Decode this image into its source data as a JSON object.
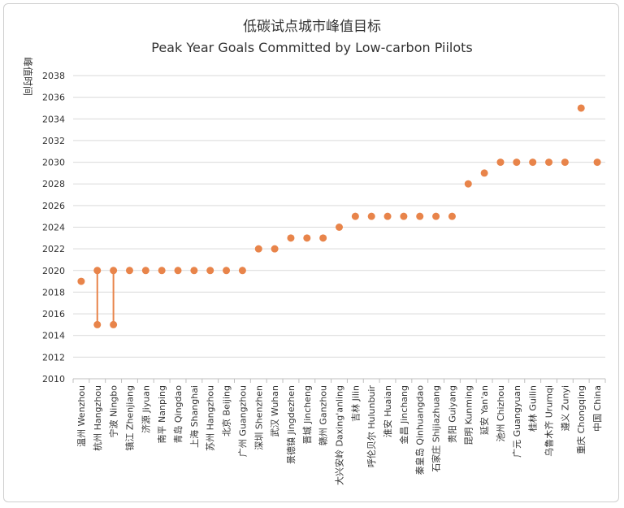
{
  "chart_data": {
    "type": "scatter",
    "title": "低碳试点城市峰值目标",
    "subtitle": "Peak Year Goals Committed by Low-carbon Piilots",
    "ylabel": "峰值时间",
    "xlabel": "",
    "ylim": [
      2010,
      2038
    ],
    "yticks": [
      "2010",
      "2012",
      "2014",
      "2016",
      "2018",
      "2020",
      "2022",
      "2024",
      "2026",
      "2028",
      "2030",
      "2032",
      "2034",
      "2036",
      "2038"
    ],
    "grid": true,
    "marker_color": "#e8844a",
    "categories": [
      "温州 Wenzhou",
      "杭州 Hangzhou",
      "宁波 Ningbo",
      "镇江 Zhenjiang",
      "济源 Jiyuan",
      "南平 Nanping",
      "青岛 Qingdao",
      "上海 Shanghai",
      "苏州 Hangzhou",
      "北京 Beijing",
      "广州 Guangzhou",
      "深圳 Shenzhen",
      "武汉 Wuhan",
      "景德镇 Jingdezhen",
      "晋城 Jincheng",
      "赣州 Ganzhou",
      "大兴安岭 Daxing'anling",
      "吉林 Jilin",
      "呼伦贝尔 Hulunbuir",
      "淮安 Huaian",
      "金昌 Jinchang",
      "秦皇岛 Qinhuangdao",
      "石家庄 Shijiazhuang",
      "贵阳 Guiyang",
      "昆明 Kunming",
      "延安 Yan'an",
      "池州 Chizhou",
      "广元 Guangyuan",
      "桂林 Guilin",
      "乌鲁木齐 Urumqi",
      "遵义 Zunyi",
      "重庆 Chongqing",
      "中国 China"
    ],
    "series": [
      {
        "values": [
          2019,
          2020,
          2020,
          2020,
          2020,
          2020,
          2020,
          2020,
          2020,
          2020,
          2020,
          2022,
          2022,
          2023,
          2023,
          2023,
          2024,
          2025,
          2025,
          2025,
          2025,
          2025,
          2025,
          2025,
          2028,
          2029,
          2030,
          2030,
          2030,
          2030,
          2030,
          2035,
          2030
        ],
        "range_low": [
          null,
          2015,
          2015,
          null,
          null,
          null,
          null,
          null,
          null,
          null,
          null,
          null,
          null,
          null,
          null,
          null,
          null,
          null,
          null,
          null,
          null,
          null,
          null,
          null,
          null,
          null,
          null,
          null,
          null,
          null,
          null,
          null,
          null
        ]
      }
    ]
  }
}
